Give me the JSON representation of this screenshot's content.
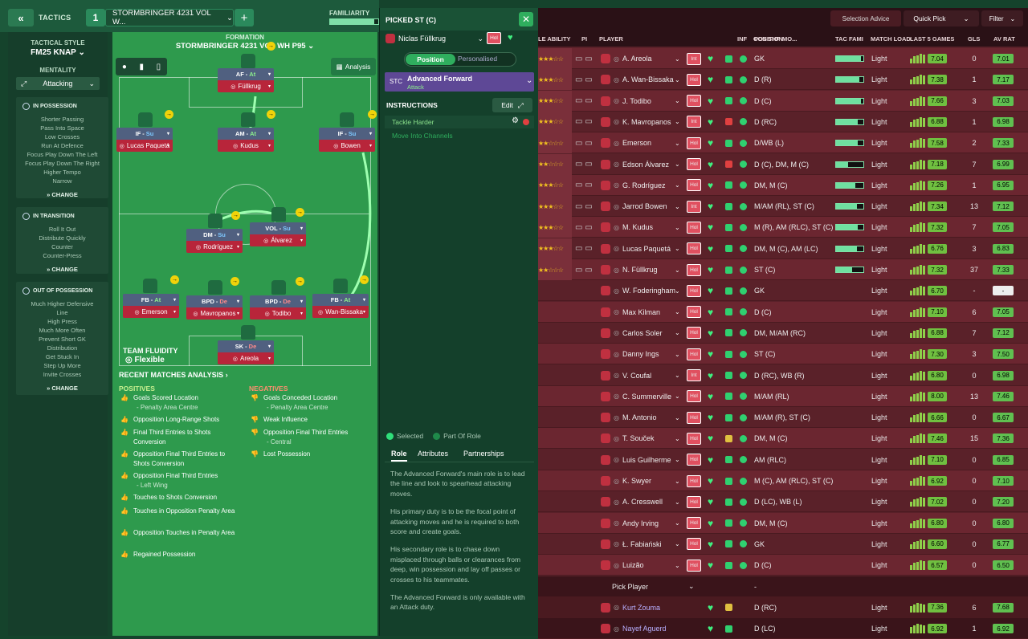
{
  "topbar": {
    "tactics_label": "TACTICS",
    "tactic_number": "1",
    "tactic_name": "STORMBRINGER 4231 VOL W...",
    "familiarity_label": "FAMILIARITY",
    "familiarity": 0.92
  },
  "sidebar": {
    "tactical_style_label": "TACTICAL STYLE",
    "tactical_style": "FM25 KNAP",
    "mentality_label": "MENTALITY",
    "mentality": "Attacking",
    "in_possession": {
      "title": "IN POSSESSION",
      "items": [
        "Shorter Passing",
        "Pass Into Space",
        "Low Crosses",
        "Run At Defence",
        "Focus Play Down The Left",
        "Focus Play Down The Right",
        "Higher Tempo",
        "Narrow"
      ]
    },
    "in_transition": {
      "title": "IN TRANSITION",
      "items": [
        "Roll It Out",
        "Distribute Quickly",
        "Counter",
        "Counter-Press"
      ]
    },
    "out_of_possession": {
      "title": "OUT OF POSSESSION",
      "items": [
        "Much Higher Defensive",
        "Line",
        "High Press",
        "Much More Often",
        "Prevent Short GK",
        "Distribution",
        "Get Stuck In",
        "Step Up More",
        "Invite Crosses"
      ]
    },
    "change_label": "CHANGE"
  },
  "pitch": {
    "formation_label": "FORMATION",
    "formation": "STORMBRINGER 4231 VOL WH P95",
    "analysis_label": "Analysis",
    "team_fluidity_label": "TEAM FLUIDITY",
    "team_fluidity": "Flexible",
    "players": [
      {
        "role": "AF",
        "duty": "At",
        "name": "Füllkrug"
      },
      {
        "role": "IF",
        "duty": "Su",
        "name": "Lucas Paquetá"
      },
      {
        "role": "AM",
        "duty": "At",
        "name": "Kudus"
      },
      {
        "role": "IF",
        "duty": "Su",
        "name": "Bowen"
      },
      {
        "role": "DM",
        "duty": "Su",
        "name": "Rodríguez"
      },
      {
        "role": "VOL",
        "duty": "Su",
        "name": "Álvarez"
      },
      {
        "role": "FB",
        "duty": "At",
        "name": "Emerson"
      },
      {
        "role": "BPD",
        "duty": "De",
        "name": "Mavropanos"
      },
      {
        "role": "BPD",
        "duty": "De",
        "name": "Todibo"
      },
      {
        "role": "FB",
        "duty": "At",
        "name": "Wan-Bissaka"
      },
      {
        "role": "SK",
        "duty": "De",
        "name": "Areola"
      }
    ]
  },
  "analysis": {
    "title": "RECENT MATCHES ANALYSIS",
    "positives_label": "POSITIVES",
    "negatives_label": "NEGATIVES",
    "positives": [
      {
        "t": "Goals Scored Location",
        "s": "- Penalty Area Centre"
      },
      {
        "t": "Opposition Long-Range Shots",
        "s": ""
      },
      {
        "t": "Final Third Entries to Shots Conversion",
        "s": ""
      },
      {
        "t": "Opposition Final Third Entries to Shots Conversion",
        "s": ""
      },
      {
        "t": "Opposition Final Third Entries",
        "s": "- Left Wing"
      },
      {
        "t": "Touches to Shots Conversion",
        "s": ""
      },
      {
        "t": "Touches in Opposition Penalty Area",
        "s": ""
      },
      {
        "t": "Opposition Touches in Penalty Area",
        "s": ""
      },
      {
        "t": "Regained Possession",
        "s": ""
      }
    ],
    "negatives": [
      {
        "t": "Goals Conceded Location",
        "s": "- Penalty Area Centre"
      },
      {
        "t": "Weak Influence",
        "s": ""
      },
      {
        "t": "Opposition Final Third Entries",
        "s": "- Central"
      },
      {
        "t": "Lost Possession",
        "s": ""
      }
    ]
  },
  "mid": {
    "title": "PICKED ST (C)",
    "player": "Niclas Füllkrug",
    "hol": "Hol",
    "position_tab": "Position",
    "personalised_tab": "Personalised",
    "pos_code": "STC",
    "role": "Advanced Forward",
    "duty": "Attack",
    "instructions_label": "INSTRUCTIONS",
    "edit_label": "Edit",
    "instructions": [
      "Tackle Harder",
      "Move Into Channels"
    ],
    "legend_selected": "Selected",
    "legend_part": "Part Of Role",
    "tabs": [
      "Role",
      "Attributes",
      "Partnerships"
    ],
    "desc": [
      "The Advanced Forward's main role is to lead the line and look to spearhead attacking moves.",
      "His primary duty is to be the focal point of attacking moves and he is required to both score and create goals.",
      "His secondary role is to chase down misplaced through balls or clearances from deep, win possession and lay off passes or crosses to his teammates.",
      "The Advanced Forward is only available with an Attack duty."
    ]
  },
  "table": {
    "selection_advice": "Selection Advice",
    "quick_pick": "Quick Pick",
    "filter": "Filter",
    "headers": [
      "LE ABILITY",
      "PI",
      "PLAYER",
      "INF",
      "CON",
      "SHP",
      "MO...",
      "POSITION",
      "TAC FAMI",
      "MATCH LOAD",
      "LAST 5 GAMES",
      "GLS",
      "AV RAT"
    ],
    "pick_player": "Pick Player",
    "pick_dash": "-",
    "rows": [
      {
        "name": "A. Areola",
        "inf": "Int",
        "pos": "GK",
        "load": "Light",
        "rat": "7.04",
        "gls": "0",
        "av": "7.01",
        "stars": 3
      },
      {
        "name": "A. Wan-Bissaka",
        "inf": "Hol",
        "pos": "D (R)",
        "load": "Light",
        "rat": "7.38",
        "gls": "1",
        "av": "7.17",
        "stars": 3
      },
      {
        "name": "J. Todibo",
        "inf": "Hol",
        "pos": "D (C)",
        "load": "Light",
        "rat": "7.66",
        "gls": "3",
        "av": "7.03",
        "stars": 3
      },
      {
        "name": "K. Mavropanos",
        "inf": "Int",
        "pos": "D (RC)",
        "load": "Light",
        "rat": "6.88",
        "gls": "1",
        "av": "6.98",
        "stars": 3
      },
      {
        "name": "Emerson",
        "inf": "Hol",
        "pos": "D/WB (L)",
        "load": "Light",
        "rat": "7.58",
        "gls": "2",
        "av": "7.33",
        "stars": 2
      },
      {
        "name": "Edson Álvarez",
        "inf": "Hol",
        "pos": "D (C), DM, M (C)",
        "load": "Light",
        "rat": "7.18",
        "gls": "7",
        "av": "6.99",
        "stars": 2
      },
      {
        "name": "G. Rodríguez",
        "inf": "Hol",
        "pos": "DM, M (C)",
        "load": "Light",
        "rat": "7.26",
        "gls": "1",
        "av": "6.95",
        "stars": 3
      },
      {
        "name": "Jarrod Bowen",
        "inf": "Int",
        "pos": "M/AM (RL), ST (C)",
        "load": "Light",
        "rat": "7.34",
        "gls": "13",
        "av": "7.12",
        "stars": 3
      },
      {
        "name": "M. Kudus",
        "inf": "Hol",
        "pos": "M (R), AM (RLC), ST (C)",
        "load": "Light",
        "rat": "7.32",
        "gls": "7",
        "av": "7.05",
        "stars": 3
      },
      {
        "name": "Lucas Paquetá",
        "inf": "Hol",
        "pos": "DM, M (C), AM (LC)",
        "load": "Light",
        "rat": "6.76",
        "gls": "3",
        "av": "6.83",
        "stars": 3
      },
      {
        "name": "N. Füllkrug",
        "inf": "Hol",
        "pos": "ST (C)",
        "load": "Light",
        "rat": "7.32",
        "gls": "37",
        "av": "7.33",
        "stars": 2
      },
      {
        "name": "W. Foderingham",
        "inf": "Hol",
        "pos": "GK",
        "load": "Light",
        "rat": "6.70",
        "gls": "-",
        "av": "-",
        "stars": 0
      },
      {
        "name": "Max Kilman",
        "inf": "Hol",
        "pos": "D (C)",
        "load": "Light",
        "rat": "7.10",
        "gls": "6",
        "av": "7.05",
        "stars": 0
      },
      {
        "name": "Carlos Soler",
        "inf": "Hol",
        "pos": "DM, M/AM (RC)",
        "load": "Light",
        "rat": "6.88",
        "gls": "7",
        "av": "7.12",
        "stars": 0
      },
      {
        "name": "Danny Ings",
        "inf": "Hol",
        "pos": "ST (C)",
        "load": "Light",
        "rat": "7.30",
        "gls": "3",
        "av": "7.50",
        "stars": 0
      },
      {
        "name": "V. Coufal",
        "inf": "Int",
        "pos": "D (RC), WB (R)",
        "load": "Light",
        "rat": "6.80",
        "gls": "0",
        "av": "6.98",
        "stars": 0
      },
      {
        "name": "C. Summerville",
        "inf": "Hol",
        "pos": "M/AM (RL)",
        "load": "Light",
        "rat": "8.00",
        "gls": "13",
        "av": "7.46",
        "stars": 0
      },
      {
        "name": "M. Antonio",
        "inf": "Hol",
        "pos": "M/AM (R), ST (C)",
        "load": "Light",
        "rat": "6.66",
        "gls": "0",
        "av": "6.67",
        "stars": 0
      },
      {
        "name": "T. Souček",
        "inf": "Hol",
        "pos": "DM, M (C)",
        "load": "Light",
        "rat": "7.46",
        "gls": "15",
        "av": "7.36",
        "stars": 0
      },
      {
        "name": "Luis Guilherme",
        "inf": "Hol",
        "pos": "AM (RLC)",
        "load": "Light",
        "rat": "7.10",
        "gls": "0",
        "av": "6.85",
        "stars": 0
      },
      {
        "name": "K. Swyer",
        "inf": "Hol",
        "pos": "M (C), AM (RLC), ST (C)",
        "load": "Light",
        "rat": "6.92",
        "gls": "0",
        "av": "7.10",
        "stars": 0
      },
      {
        "name": "A. Cresswell",
        "inf": "Hol",
        "pos": "D (LC), WB (L)",
        "load": "Light",
        "rat": "7.02",
        "gls": "0",
        "av": "7.20",
        "stars": 0
      },
      {
        "name": "Andy Irving",
        "inf": "Hol",
        "pos": "DM, M (C)",
        "load": "Light",
        "rat": "6.80",
        "gls": "0",
        "av": "6.80",
        "stars": 0
      },
      {
        "name": "Ł. Fabiański",
        "inf": "Hol",
        "pos": "GK",
        "load": "Light",
        "rat": "6.60",
        "gls": "0",
        "av": "6.77",
        "stars": 0
      },
      {
        "name": "Luizão",
        "inf": "Hol",
        "pos": "D (C)",
        "load": "Light",
        "rat": "6.57",
        "gls": "0",
        "av": "6.50",
        "stars": 0
      }
    ],
    "rows2": [
      {
        "name": "Kurt Zouma",
        "pos": "D (RC)",
        "load": "Light",
        "rat": "7.36",
        "gls": "6",
        "av": "7.68"
      },
      {
        "name": "Nayef Aguerd",
        "pos": "D (LC)",
        "load": "Light",
        "rat": "6.92",
        "gls": "1",
        "av": "6.92"
      }
    ]
  }
}
